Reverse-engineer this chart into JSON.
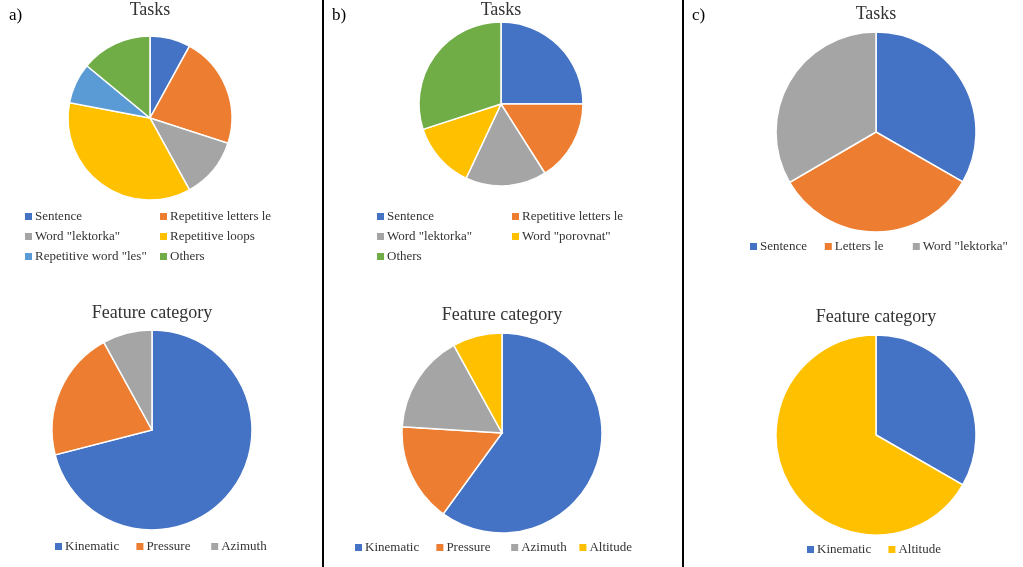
{
  "chart_data": [
    {
      "type": "pie",
      "title": "Tasks",
      "annotations": [
        "a)"
      ],
      "legend": "bottom",
      "categories": [
        "Sentence",
        "Repetitive letters le",
        "Word \"lektorka\"",
        "Repetitive loops",
        "Repetitive word \"les\"",
        "Others"
      ],
      "values": [
        8,
        22,
        12,
        36,
        8,
        14
      ],
      "colors": [
        "#4472c4",
        "#ed7d31",
        "#a5a5a5",
        "#ffc000",
        "#5b9bd5",
        "#70ad47"
      ]
    },
    {
      "type": "pie",
      "title": "Feature category",
      "legend": "bottom",
      "categories": [
        "Kinematic",
        "Pressure",
        "Azimuth"
      ],
      "values": [
        71,
        21,
        8
      ],
      "colors": [
        "#4472c4",
        "#ed7d31",
        "#a5a5a5"
      ]
    },
    {
      "type": "pie",
      "title": "Tasks",
      "annotations": [
        "b)"
      ],
      "legend": "bottom",
      "categories": [
        "Sentence",
        "Repetitive letters le",
        "Word \"lektorka\"",
        "Word \"porovnat\"",
        "Others"
      ],
      "values": [
        25,
        16,
        16,
        13,
        30
      ],
      "colors": [
        "#4472c4",
        "#ed7d31",
        "#a5a5a5",
        "#ffc000",
        "#70ad47"
      ]
    },
    {
      "type": "pie",
      "title": "Feature category",
      "legend": "bottom",
      "categories": [
        "Kinematic",
        "Pressure",
        "Azimuth",
        "Altitude"
      ],
      "values": [
        60,
        16,
        16,
        8
      ],
      "colors": [
        "#4472c4",
        "#ed7d31",
        "#a5a5a5",
        "#ffc000"
      ]
    },
    {
      "type": "pie",
      "title": "Tasks",
      "annotations": [
        "c)"
      ],
      "legend": "bottom",
      "categories": [
        "Sentence",
        "Letters le",
        "Word \"lektorka\""
      ],
      "values": [
        33.3,
        33.3,
        33.4
      ],
      "colors": [
        "#4472c4",
        "#ed7d31",
        "#a5a5a5"
      ]
    },
    {
      "type": "pie",
      "title": "Feature category",
      "legend": "bottom",
      "categories": [
        "Kinematic",
        "Altitude"
      ],
      "values": [
        33.3,
        66.7
      ],
      "colors": [
        "#4472c4",
        "#ffc000"
      ]
    }
  ]
}
